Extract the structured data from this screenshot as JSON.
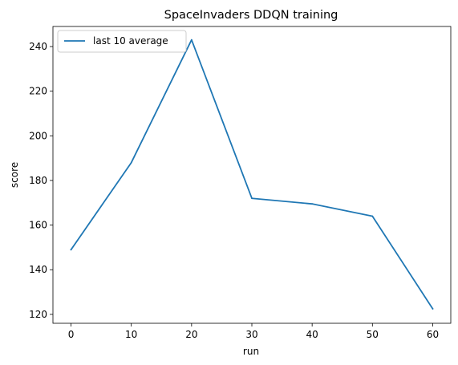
{
  "chart_data": {
    "type": "line",
    "title": "SpaceInvaders DDQN training",
    "xlabel": "run",
    "ylabel": "score",
    "x": [
      0,
      10,
      20,
      30,
      40,
      50,
      60
    ],
    "series": [
      {
        "name": "last 10 average",
        "color": "#1f77b4",
        "values": [
          149,
          188,
          243,
          172,
          169.5,
          164,
          122.5
        ]
      }
    ],
    "xlim": [
      -3,
      63
    ],
    "ylim": [
      116,
      249
    ],
    "xticks": [
      "0",
      "10",
      "20",
      "30",
      "40",
      "50",
      "60"
    ],
    "yticks": [
      "120",
      "140",
      "160",
      "180",
      "200",
      "220",
      "240"
    ],
    "grid": false,
    "legend": "top-left"
  }
}
